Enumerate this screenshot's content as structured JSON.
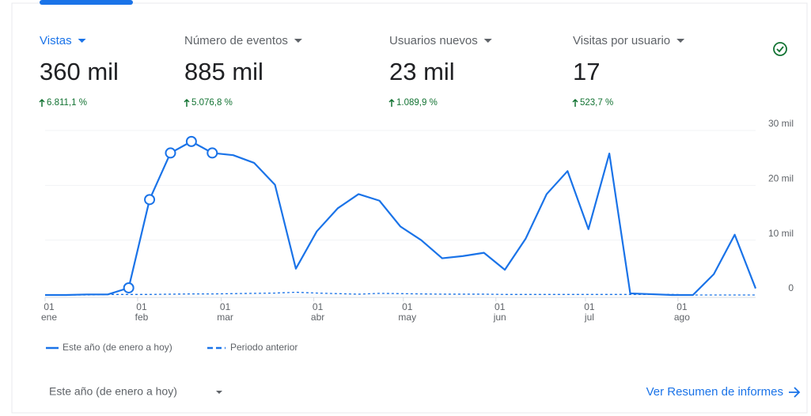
{
  "metrics": [
    {
      "title": "Vistas",
      "value": "360 mil",
      "change": "6.811,1 %"
    },
    {
      "title": "Número de eventos",
      "value": "885 mil",
      "change": "5.076,8 %"
    },
    {
      "title": "Usuarios nuevos",
      "value": "23 mil",
      "change": "1.089,9 %"
    },
    {
      "title": "Visitas por usuario",
      "value": "17",
      "change": "523,7 %"
    }
  ],
  "chart_data": {
    "type": "line",
    "x": [
      0,
      7,
      14,
      21,
      28,
      35,
      42,
      49,
      56,
      63,
      70,
      77,
      84,
      91,
      98,
      105,
      112,
      119,
      126,
      133,
      140,
      147,
      154,
      161,
      168,
      175,
      182,
      189,
      196,
      203,
      210,
      217,
      224,
      231,
      238
    ],
    "xlim": [
      0,
      238
    ],
    "xticks": [
      {
        "value": 0,
        "label": "01\nene"
      },
      {
        "value": 31,
        "label": "01\nfeb"
      },
      {
        "value": 59,
        "label": "01\nmar"
      },
      {
        "value": 90,
        "label": "01\nabr"
      },
      {
        "value": 120,
        "label": "01\nmay"
      },
      {
        "value": 151,
        "label": "01\njun"
      },
      {
        "value": 181,
        "label": "01\njul"
      },
      {
        "value": 212,
        "label": "01\nago"
      }
    ],
    "ylim": [
      0,
      30000
    ],
    "yticks": [
      0,
      {
        "value": 10000,
        "label": "10 mil"
      },
      {
        "value": 20000,
        "label": "20 mil"
      },
      {
        "value": 30000,
        "label": "30 mil"
      }
    ],
    "grid": true,
    "series": [
      {
        "name": "Este año (de enero a hoy)",
        "color": "#1a73e8",
        "dash": false,
        "markers": [
          4,
          5,
          6,
          7,
          8
        ],
        "values": [
          0,
          0,
          100,
          100,
          1300,
          17400,
          25900,
          28000,
          25900,
          25500,
          24100,
          20100,
          4800,
          11600,
          15800,
          18400,
          17200,
          12500,
          10000,
          6700,
          7100,
          7700,
          4600,
          10300,
          18400,
          22600,
          12000,
          25800,
          300,
          150,
          0,
          0,
          3800,
          11000,
          1200
        ]
      },
      {
        "name": "Periodo anterior",
        "color": "#1a73e8",
        "dash": true,
        "values": [
          0,
          0,
          0,
          100,
          100,
          100,
          150,
          200,
          200,
          250,
          300,
          350,
          500,
          350,
          250,
          150,
          300,
          250,
          200,
          150,
          150,
          150,
          100,
          100,
          100,
          100,
          100,
          100,
          100,
          100,
          100,
          0,
          0,
          0,
          0
        ]
      }
    ]
  },
  "footer": {
    "period": "Este año (de enero a hoy)",
    "link": "Ver Resumen de informes"
  }
}
